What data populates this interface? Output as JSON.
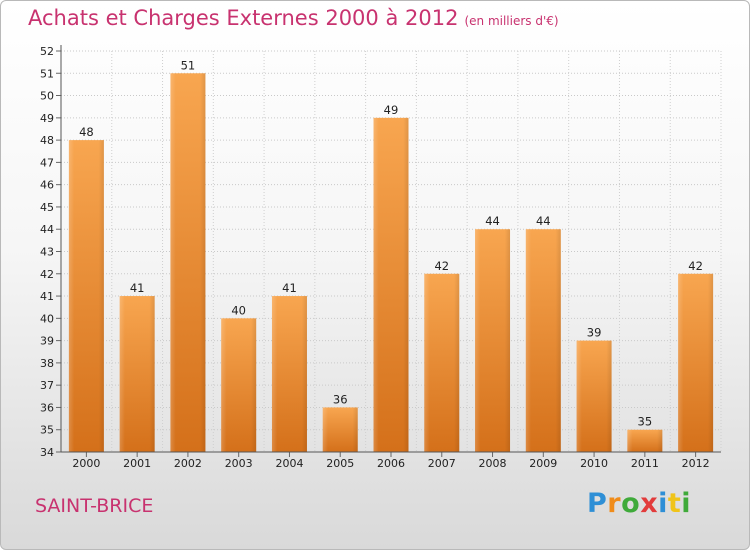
{
  "header": {
    "title": "Achats et Charges Externes 2000 à 2012",
    "unit": "(en milliers d'€)"
  },
  "footer": {
    "place": "SAINT-BRICE",
    "brand_letters": [
      "P",
      "r",
      "o",
      "x",
      "i",
      "t",
      "i"
    ]
  },
  "colors": {
    "title": "#c8326f",
    "bar_light": "#f8a650",
    "bar_dark": "#d4701a"
  },
  "chart_data": {
    "type": "bar",
    "categories": [
      "2000",
      "2001",
      "2002",
      "2003",
      "2004",
      "2005",
      "2006",
      "2007",
      "2008",
      "2009",
      "2010",
      "2011",
      "2012"
    ],
    "values": [
      48,
      41,
      51,
      40,
      41,
      36,
      49,
      42,
      44,
      44,
      39,
      35,
      42
    ],
    "ylim": [
      34,
      52
    ],
    "yticks": [
      34,
      35,
      36,
      37,
      38,
      39,
      40,
      41,
      42,
      43,
      44,
      45,
      46,
      47,
      48,
      49,
      50,
      51,
      52
    ],
    "grid": true,
    "legend": "none"
  }
}
